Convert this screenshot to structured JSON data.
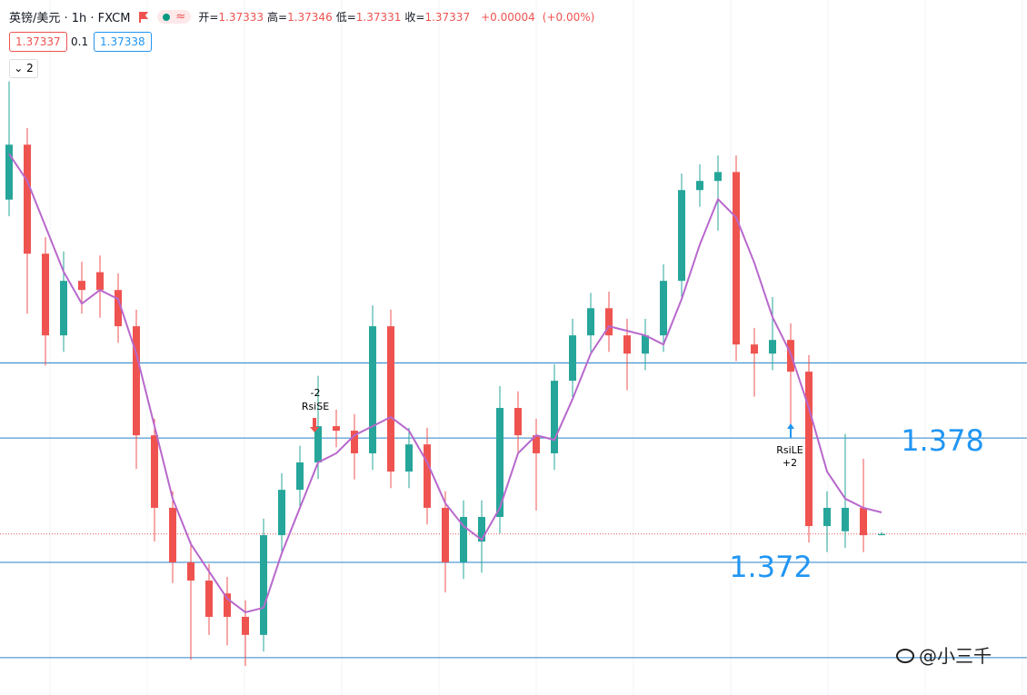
{
  "header": {
    "title": "英镑/美元 · 1h · FXCM",
    "ohlc": [
      {
        "label": "开=",
        "value": 1.37333
      },
      {
        "label": "高=",
        "value": 1.37346
      },
      {
        "label": "低=",
        "value": 1.37331
      },
      {
        "label": "收=",
        "value": 1.37337
      }
    ],
    "change": {
      "value": 4e-05,
      "label": "+0.00004"
    },
    "change_pct": {
      "value": 0,
      "label": "(+0.00%)"
    },
    "badges": [
      1.37337,
      0.1,
      1.37338
    ],
    "indicator_count": 2
  },
  "chart_data": {
    "type": "candlestick",
    "open": [
      1.3895,
      1.39215,
      1.38689,
      1.38295,
      1.38558,
      1.386,
      1.38514,
      1.38339,
      1.37813,
      1.37463,
      1.372,
      1.37112,
      1.3705,
      1.36937,
      1.3685,
      1.37331,
      1.3755,
      1.37682,
      1.37857,
      1.37835,
      1.37726,
      1.38339,
      1.37638,
      1.37769,
      1.37463,
      1.372,
      1.373,
      1.37419,
      1.37945,
      1.37813,
      1.37726,
      1.38076,
      1.38295,
      1.38426,
      1.38295,
      1.38207,
      1.38295,
      1.38558,
      1.38996,
      1.3904,
      1.39083,
      1.38251,
      1.38207,
      1.38273,
      1.3812,
      1.37375,
      1.3735,
      1.37463,
      1.37331
    ],
    "high": [
      1.3952,
      1.39295,
      1.38769,
      1.387,
      1.3865,
      1.3868,
      1.38594,
      1.38419,
      1.37893,
      1.37543,
      1.373,
      1.37192,
      1.3713,
      1.37017,
      1.37411,
      1.3763,
      1.37762,
      1.381,
      1.37937,
      1.37915,
      1.3844,
      1.38419,
      1.37849,
      1.37849,
      1.37543,
      1.37499,
      1.37499,
      1.3805,
      1.38025,
      1.37893,
      1.38156,
      1.38375,
      1.385,
      1.38506,
      1.38375,
      1.38375,
      1.38638,
      1.39076,
      1.3912,
      1.39163,
      1.39163,
      1.38331,
      1.3848,
      1.38353,
      1.382,
      1.37543,
      1.3782,
      1.377,
      1.37346
    ],
    "low": [
      1.3887,
      1.384,
      1.3815,
      1.38215,
      1.384,
      1.3838,
      1.38259,
      1.3765,
      1.373,
      1.371,
      1.3673,
      1.3685,
      1.368,
      1.367,
      1.3677,
      1.37251,
      1.3747,
      1.37602,
      1.37755,
      1.376,
      1.37646,
      1.37558,
      1.37558,
      1.37383,
      1.37055,
      1.3712,
      1.3715,
      1.37339,
      1.37733,
      1.3745,
      1.37646,
      1.37996,
      1.38215,
      1.38215,
      1.3803,
      1.38127,
      1.38215,
      1.38478,
      1.38916,
      1.388,
      1.38171,
      1.38,
      1.38127,
      1.378,
      1.37295,
      1.3725,
      1.3727,
      1.3725,
      1.37331
    ],
    "close": [
      1.39215,
      1.38689,
      1.38295,
      1.38558,
      1.38514,
      1.38514,
      1.38339,
      1.37813,
      1.37463,
      1.372,
      1.37112,
      1.36937,
      1.36937,
      1.3685,
      1.37331,
      1.3755,
      1.37682,
      1.37857,
      1.37835,
      1.37726,
      1.38339,
      1.37638,
      1.37769,
      1.37463,
      1.372,
      1.37419,
      1.37419,
      1.37945,
      1.37813,
      1.37726,
      1.38076,
      1.38295,
      1.38426,
      1.38295,
      1.38207,
      1.38295,
      1.38558,
      1.38996,
      1.3904,
      1.39083,
      1.38251,
      1.38207,
      1.38273,
      1.3812,
      1.37375,
      1.37463,
      1.37463,
      1.37331,
      1.37337
    ],
    "ma": {
      "color": "#b868cc",
      "values": [
        1.39171,
        1.3904,
        1.38821,
        1.38602,
        1.38448,
        1.38514,
        1.3847,
        1.38207,
        1.37857,
        1.37507,
        1.37288,
        1.37156,
        1.37025,
        1.36959,
        1.36981,
        1.37244,
        1.37463,
        1.37682,
        1.37726,
        1.37813,
        1.37857,
        1.37901,
        1.37835,
        1.37682,
        1.37485,
        1.37375,
        1.37309,
        1.37463,
        1.37726,
        1.37813,
        1.37791,
        1.37988,
        1.38207,
        1.38339,
        1.38317,
        1.38295,
        1.38251,
        1.3847,
        1.38733,
        1.38952,
        1.38864,
        1.38645,
        1.38383,
        1.38207,
        1.37945,
        1.37638,
        1.37507,
        1.37463,
        1.37441
      ]
    },
    "up_color": "#26a69a",
    "down_color": "#ef5350",
    "ylim": [
      1.3656,
      1.3965
    ],
    "hlines": [
      1.38162,
      {
        "value": 1.378,
        "label": "1.378"
      },
      {
        "value": 1.372,
        "label": "1.372"
      },
      1.3674
    ],
    "hline_color": "#2a82c8",
    "price_line": 1.37337,
    "signals": [
      {
        "name": "RsiSE",
        "value": -2
      },
      {
        "name": "RsiLE",
        "value": {
          "value": 2,
          "label": "+2"
        }
      }
    ]
  },
  "watermark": "@小三千"
}
